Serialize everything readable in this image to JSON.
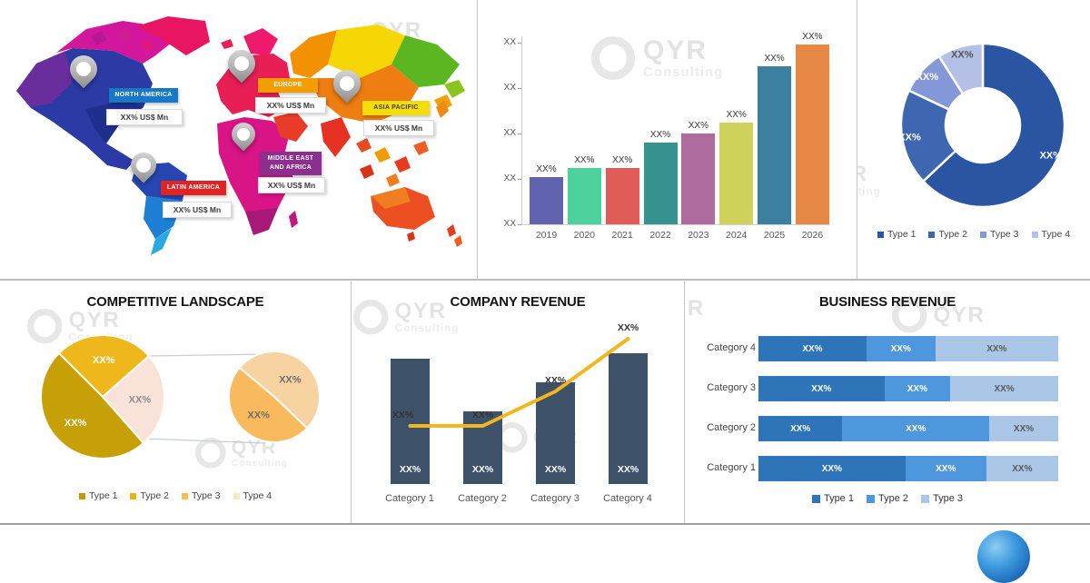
{
  "brand": {
    "name": "QYR",
    "subtitle": "Consulting"
  },
  "chart_data": [
    {
      "id": "regional-market-map",
      "type": "map",
      "regions": [
        {
          "name": "NORTH AMERICA",
          "value": "XX% US$ Mn",
          "color": "#1878c8",
          "text_color": "#ffffff"
        },
        {
          "name": "EUROPE",
          "value": "XX% US$ Mn",
          "color": "#f59c00",
          "text_color": "#ffffff"
        },
        {
          "name": "ASIA PACIFIC",
          "value": "XX% US$ Mn",
          "color": "#f2dc0a",
          "text_color": "#3a3a3a"
        },
        {
          "name": "MIDDLE EAST AND AFRICA",
          "value": "XX% US$ Mn",
          "color": "#8c2f8e",
          "text_color": "#ffffff"
        },
        {
          "name": "LATIN AMERICA",
          "value": "XX% US$ Mn",
          "color": "#e02424",
          "text_color": "#ffffff"
        }
      ]
    },
    {
      "id": "market-growth",
      "type": "bar",
      "categories": [
        "2019",
        "2020",
        "2021",
        "2022",
        "2023",
        "2024",
        "2025",
        "2026"
      ],
      "values": [
        26,
        31,
        31,
        45,
        50,
        56,
        87,
        99
      ],
      "bar_labels": [
        "XX%",
        "XX%",
        "XX%",
        "XX%",
        "XX%",
        "XX%",
        "XX%",
        "XX%"
      ],
      "bar_colors": [
        "#6263ae",
        "#4ed29c",
        "#e05c59",
        "#37938f",
        "#ad6b9e",
        "#d0d35b",
        "#3c80a0",
        "#e78844"
      ],
      "yticks": [
        "XX",
        "XX",
        "XX",
        "XX",
        "XX"
      ],
      "ylim": [
        0,
        100
      ],
      "grid": false
    },
    {
      "id": "market-share-by-type",
      "type": "donut",
      "segments": [
        {
          "label": "Type 1",
          "value": 63,
          "data_label": "XX%",
          "color": "#2a55a2",
          "label_color": "#ffffff"
        },
        {
          "label": "Type 2",
          "value": 19,
          "data_label": "XX%",
          "color": "#3f66b0",
          "label_color": "#ffffff"
        },
        {
          "label": "Type 3",
          "value": 9,
          "data_label": "XX%",
          "color": "#8497d6",
          "label_color": "#ffffff"
        },
        {
          "label": "Type 4",
          "value": 9,
          "data_label": "XX%",
          "color": "#b4c0e6",
          "label_color": "#555555"
        }
      ],
      "legend_position": "bottom"
    },
    {
      "id": "competitive-landscape",
      "type": "pie-of-pie",
      "title": "COMPETITIVE LANDSCAPE",
      "main_pie": [
        {
          "label": "Type 2",
          "value": 26,
          "data_label": "XX%",
          "color": "#eeb71c",
          "label_color": "#ffffff"
        },
        {
          "label": "Other",
          "value": 25,
          "data_label": "XX%",
          "color": "#f9e3d8",
          "label_color": "#8a8a8a"
        },
        {
          "label": "Type 1",
          "value": 49,
          "data_label": "XX%",
          "color": "#c79f06",
          "label_color": "#ffffff"
        }
      ],
      "secondary_pie": [
        {
          "label": "Type 4",
          "value": 51,
          "data_label": "XX%",
          "color": "#f8d3a2",
          "label_color": "#6e6e6e"
        },
        {
          "label": "Type 3",
          "value": 49,
          "data_label": "XX%",
          "color": "#f9ba5e",
          "label_color": "#6e6e6e"
        }
      ],
      "legend": [
        {
          "label": "Type 1",
          "color": "#c19b06"
        },
        {
          "label": "Type 2",
          "color": "#e3b70f"
        },
        {
          "label": "Type 3",
          "color": "#f3c053"
        },
        {
          "label": "Type 4",
          "color": "#f8e8c6"
        }
      ]
    },
    {
      "id": "company-revenue",
      "type": "bar+line",
      "title": "COMPANY REVENUE",
      "categories": [
        "Category 1",
        "Category 2",
        "Category 3",
        "Category 4"
      ],
      "bar_values": [
        69,
        40,
        56,
        72
      ],
      "bar_labels": [
        "XX%",
        "XX%",
        "XX%",
        "XX%"
      ],
      "bar_color": "#3d5269",
      "line_values": [
        32,
        32,
        51,
        80
      ],
      "line_labels": [
        "XX%",
        "XX%",
        "XX%",
        "XX%"
      ],
      "line_color": "#f3b71d"
    },
    {
      "id": "business-revenue",
      "type": "stacked-bar-horizontal",
      "title": "BUSINESS REVENUE",
      "series_colors": [
        "#2e74b8",
        "#4e97dc",
        "#aac7e8"
      ],
      "legend": [
        "Type 1",
        "Type 2",
        "Type 3"
      ],
      "rows": [
        {
          "category": "Category 4",
          "segments": [
            {
              "type": "Type 1",
              "value": 36,
              "label": "XX%"
            },
            {
              "type": "Type 2",
              "value": 23,
              "label": "XX%"
            },
            {
              "type": "Type 3",
              "value": 41,
              "label": "XX%"
            }
          ]
        },
        {
          "category": "Category 3",
          "segments": [
            {
              "type": "Type 1",
              "value": 42,
              "label": "XX%"
            },
            {
              "type": "Type 2",
              "value": 22,
              "label": "XX%"
            },
            {
              "type": "Type 3",
              "value": 36,
              "label": "XX%"
            }
          ]
        },
        {
          "category": "Category 2",
          "segments": [
            {
              "type": "Type 1",
              "value": 28,
              "label": "XX%"
            },
            {
              "type": "Type 2",
              "value": 49,
              "label": "XX%"
            },
            {
              "type": "Type 3",
              "value": 23,
              "label": "XX%"
            }
          ]
        },
        {
          "category": "Category 1",
          "segments": [
            {
              "type": "Type 1",
              "value": 49,
              "label": "XX%"
            },
            {
              "type": "Type 2",
              "value": 27,
              "label": "XX%"
            },
            {
              "type": "Type 3",
              "value": 24,
              "label": "XX%"
            }
          ]
        }
      ]
    }
  ]
}
